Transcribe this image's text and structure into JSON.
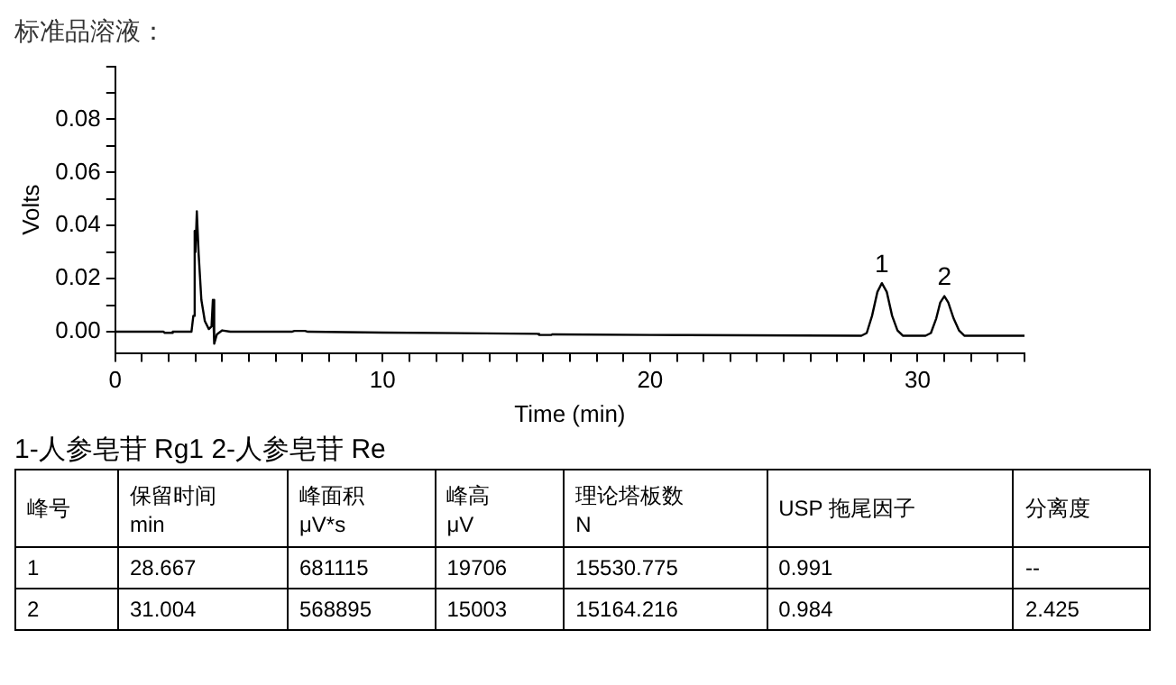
{
  "chart_data": {
    "type": "line",
    "title": "标准品溶液：",
    "xlabel": "Time (min)",
    "ylabel": "Volts",
    "x": [
      0,
      1.8,
      1.85,
      2.1,
      2.15,
      2.85,
      2.92,
      2.97,
      3.0,
      3.05,
      3.12,
      3.22,
      3.35,
      3.5,
      3.6,
      3.65,
      3.7,
      3.8,
      4.0,
      4.3,
      6.6,
      6.7,
      7.1,
      7.2,
      10,
      15.8,
      15.85,
      16.3,
      16.35,
      20,
      27.9,
      28.1,
      28.3,
      28.5,
      28.667,
      28.85,
      29.05,
      29.25,
      29.45,
      30.3,
      30.5,
      30.7,
      30.85,
      31.004,
      31.15,
      31.35,
      31.55,
      31.75,
      34
    ],
    "values": [
      0,
      0,
      -0.0004,
      -0.0004,
      0,
      0,
      0.006,
      0.038,
      0.03,
      0.0454,
      0.029,
      0.012,
      0.004,
      0.001,
      0.002,
      0.012,
      -0.0045,
      -0.001,
      0.0005,
      0,
      0,
      0.0003,
      0.0003,
      0,
      -0.0003,
      -0.0008,
      -0.0012,
      -0.0012,
      -0.001,
      -0.0012,
      -0.0015,
      -0.0005,
      0.006,
      0.015,
      0.0183,
      0.015,
      0.006,
      0.0005,
      -0.0015,
      -0.0015,
      -0.0005,
      0.005,
      0.011,
      0.0134,
      0.011,
      0.005,
      0.0005,
      -0.0015,
      -0.0015
    ],
    "color": "#000000",
    "marker": "none",
    "line_style": "solid",
    "grid": false,
    "legend": false,
    "xlim": [
      0,
      34
    ],
    "xticks": [
      0,
      {
        "value": 1,
        "label": null
      },
      {
        "value": 2,
        "label": null
      },
      {
        "value": 3,
        "label": null
      },
      {
        "value": 4,
        "label": null
      },
      {
        "value": 5,
        "label": null
      },
      {
        "value": 6,
        "label": null
      },
      {
        "value": 7,
        "label": null
      },
      {
        "value": 8,
        "label": null
      },
      {
        "value": 9,
        "label": null
      },
      10,
      {
        "value": 11,
        "label": null
      },
      {
        "value": 12,
        "label": null
      },
      {
        "value": 13,
        "label": null
      },
      {
        "value": 14,
        "label": null
      },
      {
        "value": 15,
        "label": null
      },
      {
        "value": 16,
        "label": null
      },
      {
        "value": 17,
        "label": null
      },
      {
        "value": 18,
        "label": null
      },
      {
        "value": 19,
        "label": null
      },
      20,
      {
        "value": 21,
        "label": null
      },
      {
        "value": 22,
        "label": null
      },
      {
        "value": 23,
        "label": null
      },
      {
        "value": 24,
        "label": null
      },
      {
        "value": 25,
        "label": null
      },
      {
        "value": 26,
        "label": null
      },
      {
        "value": 27,
        "label": null
      },
      {
        "value": 28,
        "label": null
      },
      {
        "value": 29,
        "label": null
      },
      30,
      {
        "value": 31,
        "label": null
      },
      {
        "value": 32,
        "label": null
      },
      {
        "value": 33,
        "label": null
      },
      {
        "value": 34,
        "label": null
      }
    ],
    "ylim": [
      -0.008,
      0.1
    ],
    "yticks": [
      {
        "value": 0,
        "label": "0.00"
      },
      {
        "value": 0.01,
        "label": null
      },
      {
        "value": 0.02,
        "label": "0.02"
      },
      {
        "value": 0.03,
        "label": null
      },
      {
        "value": 0.04,
        "label": "0.04"
      },
      {
        "value": 0.05,
        "label": null
      },
      {
        "value": 0.06,
        "label": "0.06"
      },
      {
        "value": 0.07,
        "label": null
      },
      {
        "value": 0.08,
        "label": "0.08"
      },
      {
        "value": 0.09,
        "label": null
      },
      {
        "value": 0.1,
        "label": null
      }
    ],
    "annotations": [
      {
        "text": "1",
        "x": 28.667,
        "y": 0.0183
      },
      {
        "text": "2",
        "x": 31.004,
        "y": 0.0134
      },
      "1-人参皂苷 Rg1   2-人参皂苷 Re",
      "峰号",
      "保留时间\nmin",
      "峰面积\nμV*s",
      "峰高\nμV",
      "理论塔板数\nN",
      "USP 拖尾因子",
      "分离度",
      "1",
      "28.667",
      "681115",
      "19706",
      "15530.775",
      "0.991",
      "--",
      "2",
      "31.004",
      "568895",
      "15003",
      "15164.216",
      "0.984",
      "2.425"
    ]
  }
}
